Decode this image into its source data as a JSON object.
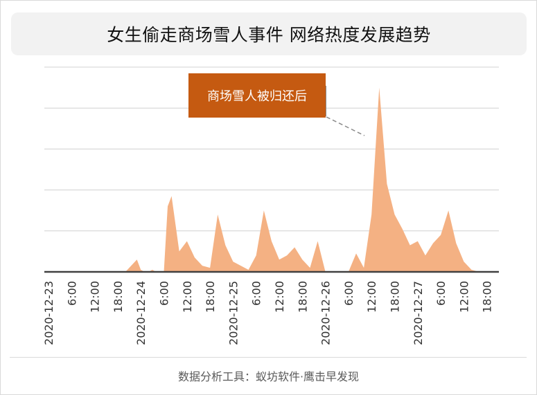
{
  "title": "女生偷走商场雪人事件 网络热度发展趋势",
  "footer": "数据分析工具：蚁坊软件·鹰击早发现",
  "annotation": "商场雪人被归还后",
  "colors": {
    "area_fill": "#f4b183",
    "callout_bg": "#c55a11",
    "baseline": "#404040",
    "grid": "#d0d0d0"
  },
  "chart_data": {
    "type": "area",
    "title": "女生偷走商场雪人事件 网络热度发展趋势",
    "xlabel": "",
    "ylabel": "",
    "ylim": [
      0,
      100
    ],
    "grid": true,
    "x_tick_labels": [
      "2020-12-23",
      "6:00",
      "12:00",
      "18:00",
      "2020-12-24",
      "6:00",
      "12:00",
      "18:00",
      "2020-12-25",
      "6:00",
      "12:00",
      "18:00",
      "2020-12-26",
      "6:00",
      "12:00",
      "18:00",
      "2020-12-27",
      "6:00",
      "12:00",
      "18:00"
    ],
    "x_unit_note": "hours since 2020-12-23 00:00",
    "series": [
      {
        "values": [
          [
            0,
            0
          ],
          [
            20,
            0
          ],
          [
            21,
            2
          ],
          [
            23,
            6
          ],
          [
            24,
            1
          ],
          [
            25,
            0
          ],
          [
            26,
            0
          ],
          [
            27,
            1
          ],
          [
            28,
            0
          ],
          [
            29,
            0
          ],
          [
            30,
            0
          ],
          [
            31,
            32
          ],
          [
            32,
            37
          ],
          [
            34,
            10
          ],
          [
            36,
            15
          ],
          [
            38,
            7
          ],
          [
            40,
            3
          ],
          [
            42,
            2
          ],
          [
            44,
            28
          ],
          [
            46,
            13
          ],
          [
            48,
            5
          ],
          [
            50,
            3
          ],
          [
            52,
            1
          ],
          [
            54,
            8
          ],
          [
            56,
            30
          ],
          [
            58,
            15
          ],
          [
            60,
            6
          ],
          [
            62,
            8
          ],
          [
            64,
            12
          ],
          [
            66,
            6
          ],
          [
            68,
            2
          ],
          [
            70,
            15
          ],
          [
            72,
            0
          ],
          [
            74,
            0
          ],
          [
            76,
            0
          ],
          [
            78,
            0
          ],
          [
            80,
            9
          ],
          [
            82,
            2
          ],
          [
            84,
            28
          ],
          [
            86,
            90
          ],
          [
            88,
            43
          ],
          [
            90,
            28
          ],
          [
            92,
            21
          ],
          [
            94,
            13
          ],
          [
            96,
            15
          ],
          [
            98,
            8
          ],
          [
            100,
            14
          ],
          [
            102,
            18
          ],
          [
            104,
            30
          ],
          [
            106,
            14
          ],
          [
            108,
            5
          ],
          [
            110,
            1
          ],
          [
            112,
            0
          ]
        ]
      }
    ]
  }
}
